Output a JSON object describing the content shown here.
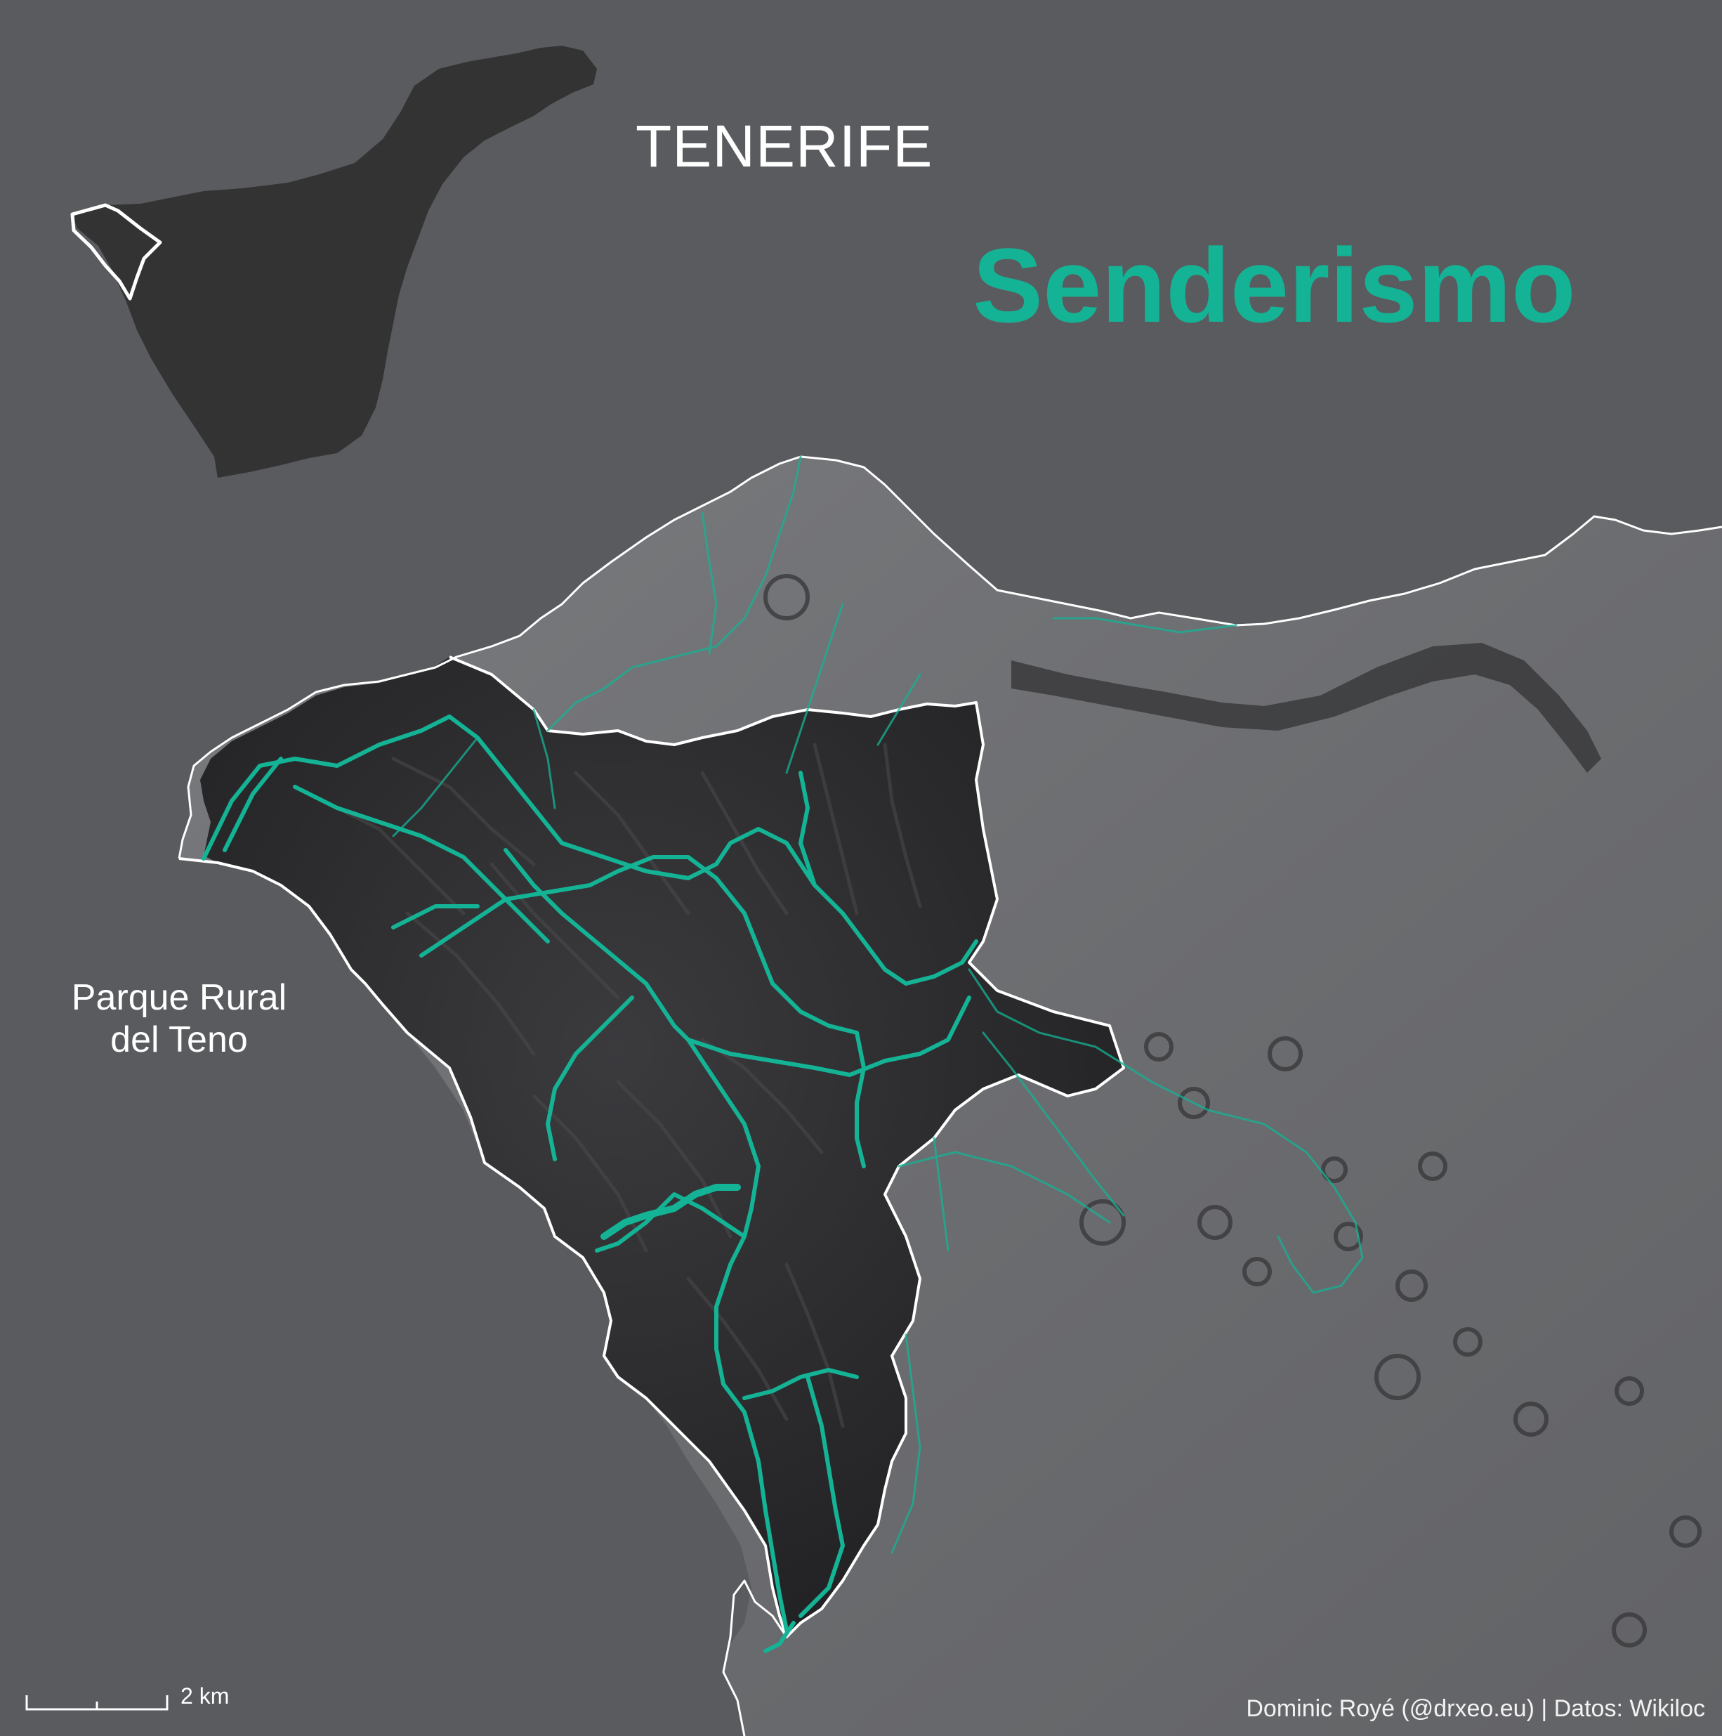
{
  "island_name": "TENERIFE",
  "title": "Senderismo",
  "park_label_line1": "Parque Rural",
  "park_label_line2": "del Teno",
  "scale_label": "2 km",
  "credit": "Dominic Royé (@drxeo.eu) | Datos: Wikiloc",
  "colors": {
    "background_sea": "#5a5b5f",
    "accent_trails": "#14b395",
    "inset_island": "#333333",
    "boundary": "#ffffff",
    "terrain": "#737376",
    "park_terrain": "#2a2a2c"
  }
}
